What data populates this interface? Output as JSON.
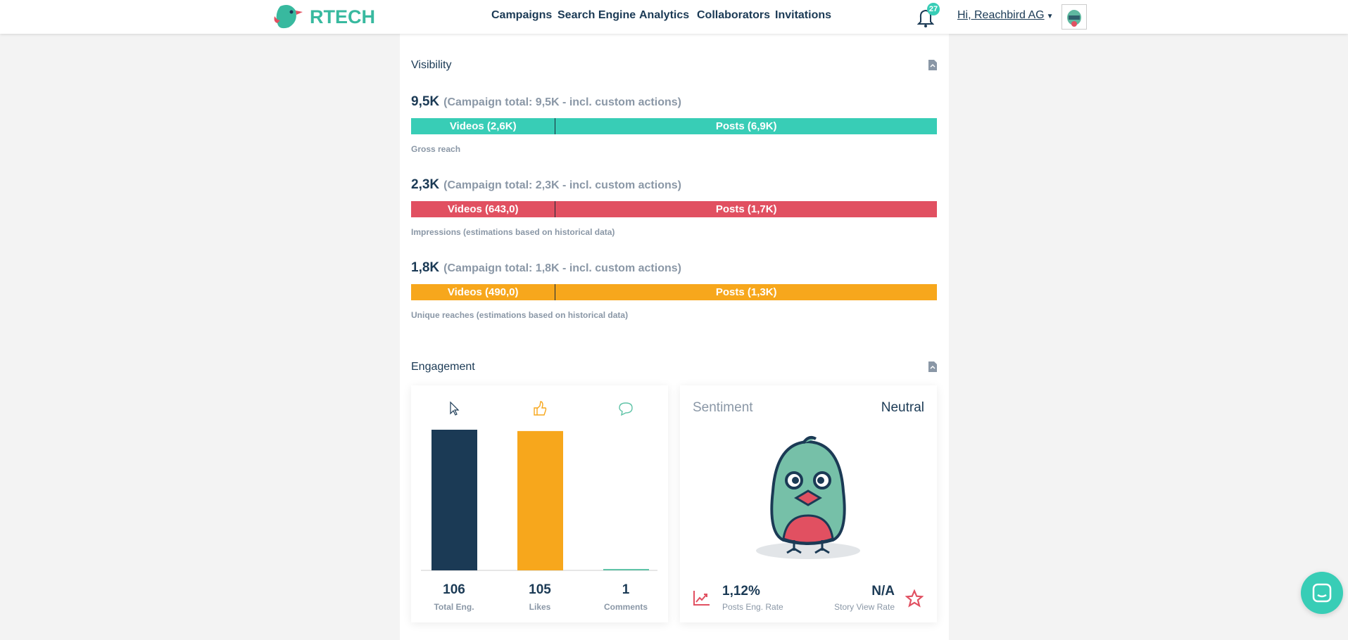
{
  "header": {
    "brand": "RTECH",
    "nav": [
      "Campaigns",
      "Search Engine",
      "Analytics",
      "Collaborators",
      "Invitations"
    ],
    "notification_count": "27",
    "user_greeting": "Hi, Reachbird AG"
  },
  "visibility": {
    "title": "Visibility",
    "metrics": [
      {
        "value": "9,5K",
        "total": "(Campaign total: 9,5K - incl. custom actions)",
        "videos": "Videos (2,6K)",
        "posts": "Posts (6,9K)",
        "videos_share": 0.275,
        "caption": "Gross reach",
        "color": "#38cdb6"
      },
      {
        "value": "2,3K",
        "total": "(Campaign total: 2,3K - incl. custom actions)",
        "videos": "Videos (643,0)",
        "posts": "Posts (1,7K)",
        "videos_share": 0.275,
        "caption": "Impressions (estimations based on historical data)",
        "color": "#e15061"
      },
      {
        "value": "1,8K",
        "total": "(Campaign total: 1,8K - incl. custom actions)",
        "videos": "Videos (490,0)",
        "posts": "Posts (1,3K)",
        "videos_share": 0.275,
        "caption": "Unique reaches (estimations based on historical data)",
        "color": "#f7a71c"
      }
    ]
  },
  "engagement": {
    "title": "Engagement",
    "chart_data": {
      "type": "bar",
      "categories": [
        "Total Eng.",
        "Likes",
        "Comments"
      ],
      "values": [
        106,
        105,
        1
      ],
      "colors": [
        "#1b3a55",
        "#f7a71c",
        "#5fc3a7"
      ],
      "icons": [
        "cursor-icon",
        "thumbs-up-icon",
        "comment-icon"
      ]
    },
    "sentiment": {
      "label": "Sentiment",
      "value": "Neutral",
      "posts_eng_rate": "1,12%",
      "posts_eng_rate_label": "Posts Eng. Rate",
      "story_view_rate": "N/A",
      "story_view_rate_label": "Story View Rate"
    }
  }
}
